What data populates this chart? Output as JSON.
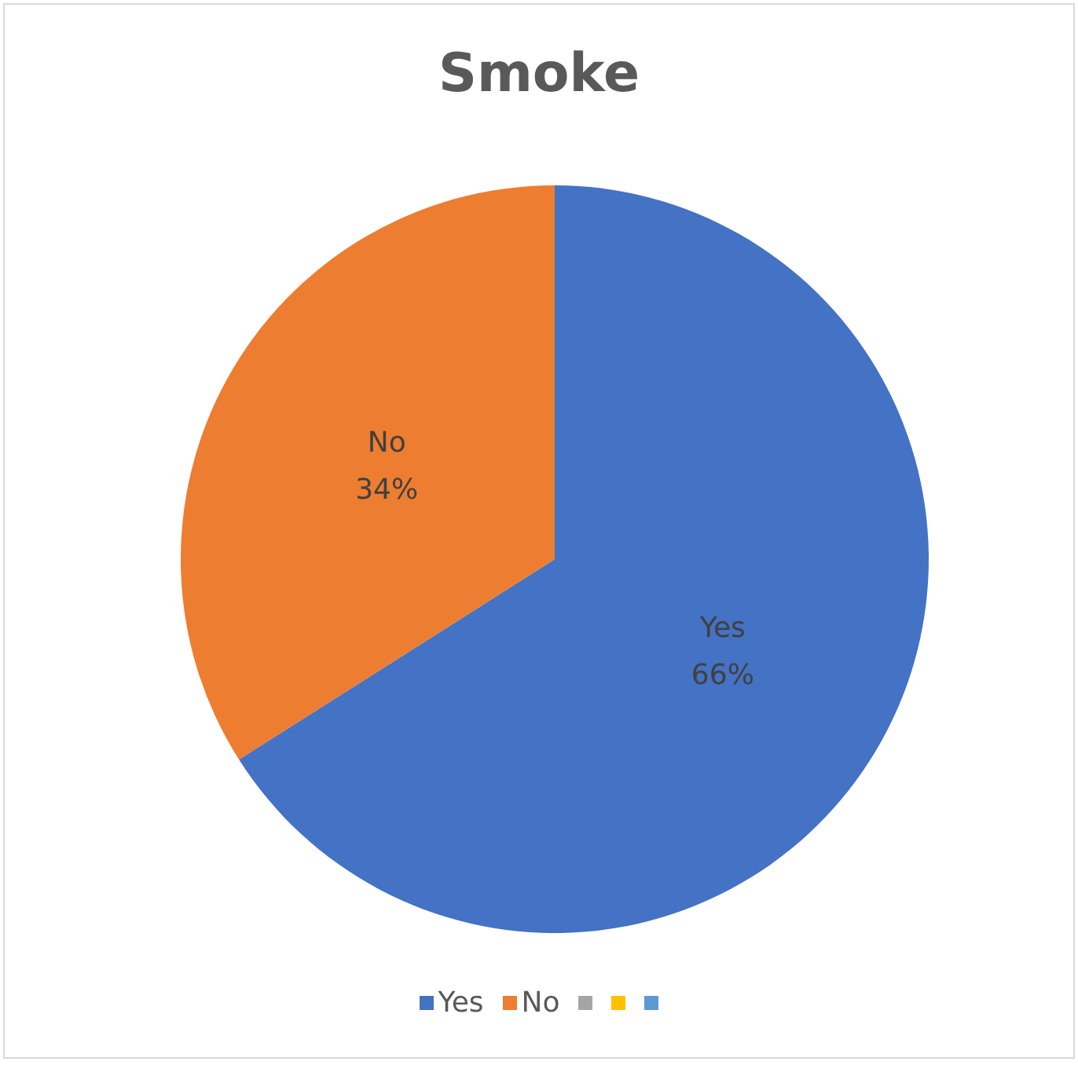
{
  "chart_data": {
    "type": "pie",
    "title": "Smoke",
    "categories": [
      "Yes",
      "No",
      null,
      null,
      null
    ],
    "values": [
      66,
      34,
      0,
      0,
      0
    ],
    "colors": [
      "#4472c4",
      "#ed7d31",
      "#a5a5a5",
      "#ffc000",
      "#5b9bd5"
    ],
    "value_labels": [
      "66%",
      "34%",
      null,
      null,
      null
    ],
    "legend": "bottom"
  }
}
